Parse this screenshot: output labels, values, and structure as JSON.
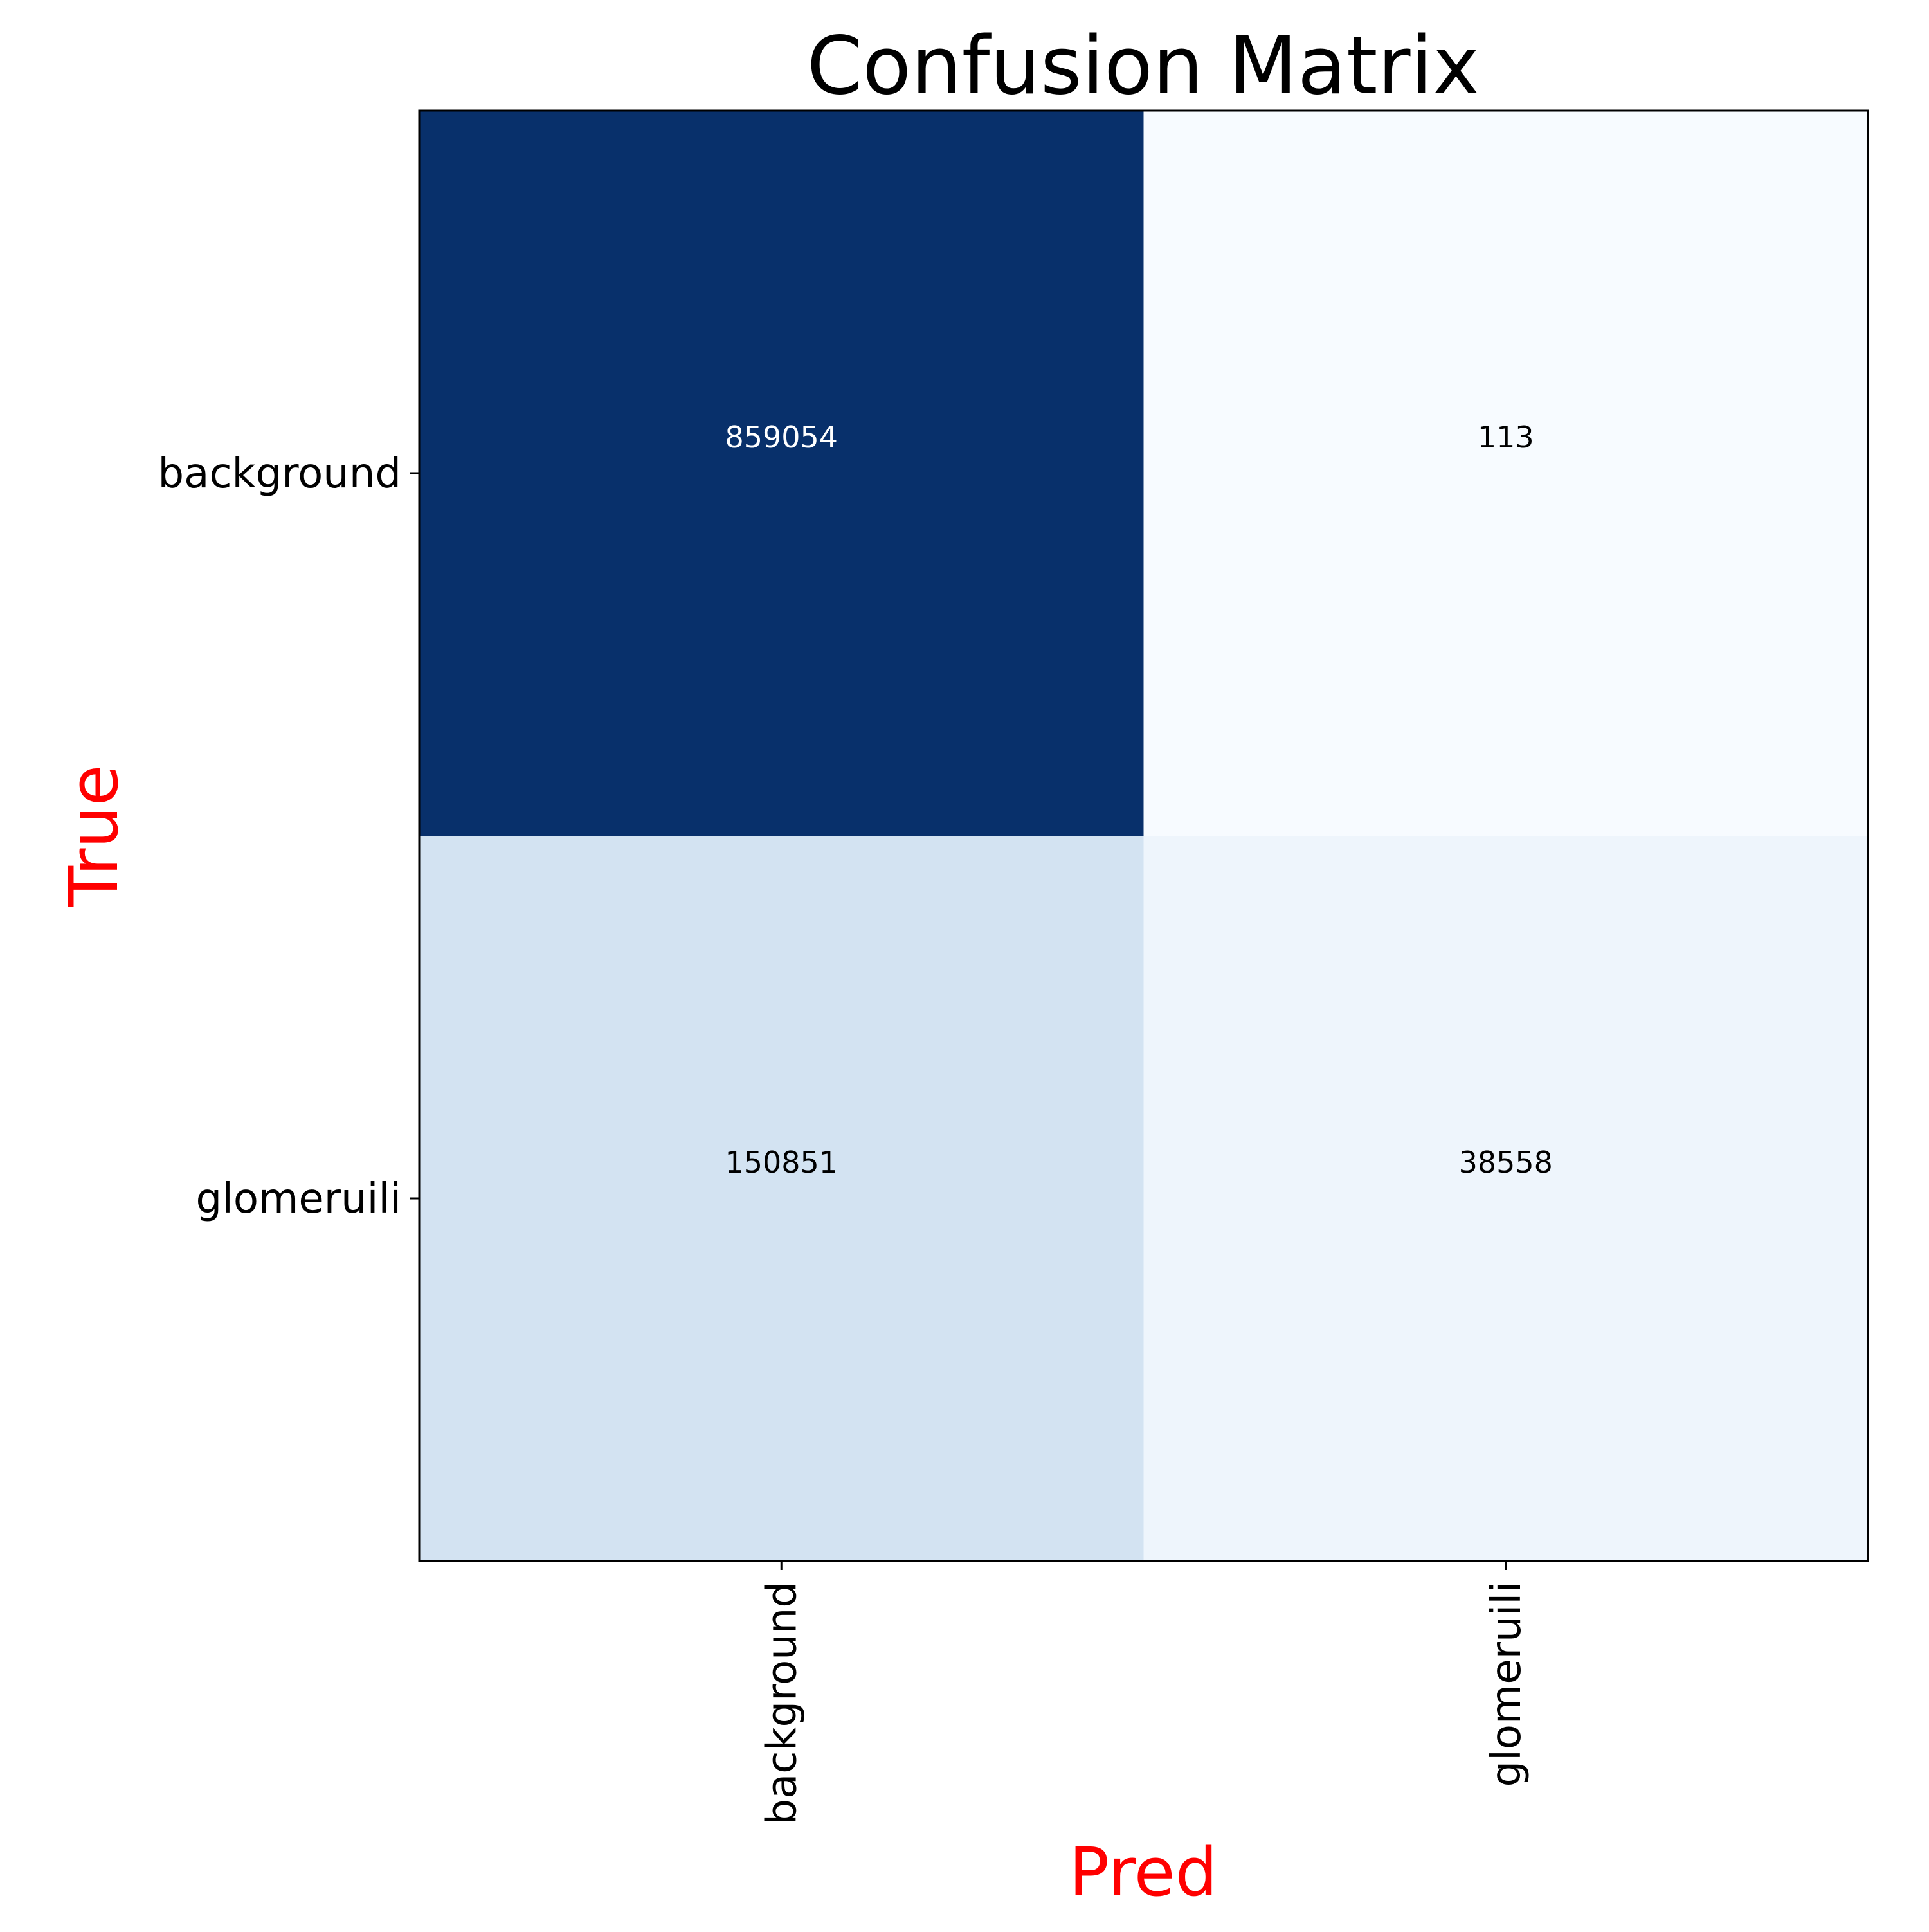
{
  "chart_data": {
    "type": "heatmap",
    "title": "Confusion Matrix",
    "xlabel": "Pred",
    "ylabel": "True",
    "x_categories": [
      "background",
      "glomeruili"
    ],
    "y_categories": [
      "background",
      "glomeruili"
    ],
    "values": [
      [
        859054,
        113
      ],
      [
        150851,
        38558
      ]
    ],
    "colormap": "Blues",
    "colors": {
      "cells": [
        [
          "#08306b",
          "#f7fbff"
        ],
        [
          "#d3e3f2",
          "#eef5fc"
        ]
      ],
      "label_text_dark": "#000000",
      "label_text_light": "#ffffff",
      "axis_label": "#ff0000",
      "title": "#000000",
      "frame": "#000000"
    },
    "grid": false,
    "colorbar": false
  }
}
